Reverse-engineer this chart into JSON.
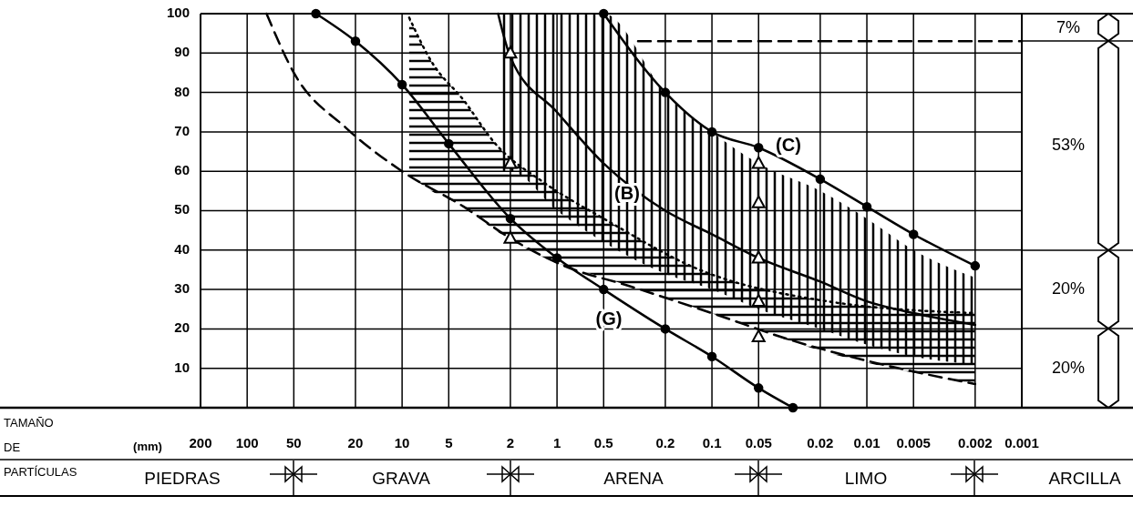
{
  "chart_data": {
    "type": "line",
    "annotations": [
      "TAMAÑO DE PARTÍCULAS",
      "(mm)",
      "(G)",
      "(C)",
      "(B)",
      "7%",
      "53%",
      "20%",
      "20%",
      "PIEDRAS",
      "GRAVA",
      "ARENA",
      "LIMO",
      "ARCILLA"
    ],
    "log": "x",
    "xlim": [
      200,
      0.001
    ],
    "xticks": [
      200,
      100,
      50,
      20,
      10,
      5,
      2,
      1,
      0.5,
      0.2,
      0.1,
      0.05,
      0.02,
      0.01,
      0.005,
      0.002,
      0.001
    ],
    "ylim": [
      0,
      100
    ],
    "yticks": [
      {
        "value": 0,
        "label": null
      },
      10,
      20,
      30,
      40,
      50,
      60,
      70,
      80,
      90,
      100
    ],
    "grid": true,
    "series": [
      {
        "color": "#000000",
        "marker": "circle",
        "line_style": "solid",
        "x": [
          36,
          20,
          10,
          5,
          2,
          1,
          0.5,
          0.2,
          0.1,
          0.05,
          0.03
        ],
        "values": [
          100,
          93,
          82,
          67,
          48,
          38,
          30,
          20,
          13,
          5,
          0
        ]
      },
      {
        "color": "#000000",
        "marker": "circle",
        "line_style": "solid",
        "x": [
          0.5,
          0.2,
          0.1,
          0.05,
          0.02,
          0.01,
          0.005,
          0.002
        ],
        "values": [
          100,
          80,
          70,
          66,
          58,
          51,
          44,
          36
        ]
      },
      {
        "color": "#000000",
        "marker": "none",
        "line_style": "solid",
        "x": [
          2.4,
          2,
          1,
          0.5,
          0.2,
          0.1,
          0.05,
          0.02,
          0.01,
          0.005,
          0.002
        ],
        "values": [
          100,
          89,
          75,
          62,
          50,
          44,
          38,
          32,
          27,
          24,
          21
        ],
        "lower": [
          60,
          60,
          50,
          42,
          34,
          30,
          25,
          20,
          16,
          13,
          11
        ],
        "upper": [
          100,
          100,
          100,
          100,
          80,
          70,
          62,
          55,
          48,
          40,
          33
        ]
      },
      {
        "color": "#000000",
        "marker": "none",
        "line_style": "dotted",
        "x": [
          9,
          6.5,
          4,
          2.5,
          1.2,
          0.5,
          0.12,
          0.018,
          0.002
        ],
        "values": [
          99,
          88,
          78,
          67,
          57,
          48,
          35,
          27,
          24
        ],
        "lower": [
          59,
          55,
          51,
          45,
          38,
          33,
          25,
          14,
          6
        ],
        "upper": [
          99,
          88,
          78,
          67,
          57,
          48,
          35,
          27,
          24
        ]
      },
      {
        "color": "#000000",
        "marker": "none",
        "line_style": "dashed",
        "x": [
          75,
          50,
          23,
          10,
          4,
          2,
          0.9,
          0.35,
          0.1,
          0.03,
          0.008,
          0.002
        ],
        "values": [
          100,
          85,
          71,
          60,
          51,
          43,
          36,
          31,
          24,
          17,
          11,
          6
        ]
      },
      {
        "color": "#000000",
        "marker": "none",
        "line_style": "dashed",
        "x": [
          0.3,
          0.001
        ],
        "values": [
          93,
          93
        ]
      },
      {
        "type": "scatter",
        "color": "#000000",
        "marker": "triangle",
        "x": [
          2,
          2,
          2,
          0.05,
          0.05,
          0.05,
          0.05,
          0.05
        ],
        "values": [
          90,
          62,
          43,
          62,
          52,
          38,
          27,
          18
        ]
      }
    ]
  }
}
